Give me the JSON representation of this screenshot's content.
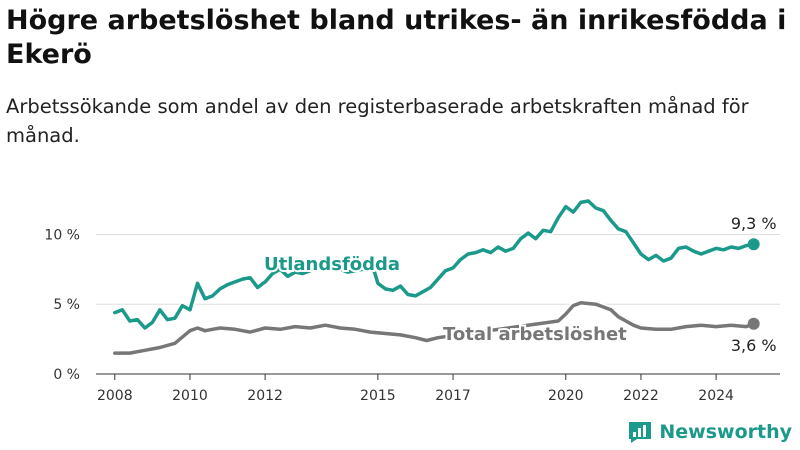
{
  "header": {
    "title": "Högre arbetslöshet bland utrikes- än inrikesfödda i Ekerö",
    "subtitle": "Arbetssökande som andel av den registerbaserade arbetskraften månad för månad."
  },
  "brand": {
    "name": "Newsworthy",
    "icon": "newsworthy-logo-icon",
    "color": "#1b998b"
  },
  "chart_data": {
    "type": "line",
    "title": "Högre arbetslöshet bland utrikes- än inrikesfödda i Ekerö",
    "subtitle": "Arbetssökande som andel av den registerbaserade arbetskraften månad för månad.",
    "xlabel": "",
    "ylabel": "",
    "xlim": [
      2007.5,
      2025.7
    ],
    "ylim": [
      0,
      12.9
    ],
    "x_ticks": [
      2008,
      2010,
      2012,
      2015,
      2017,
      2020,
      2022,
      2024
    ],
    "x_tick_labels": [
      "2008",
      "2010",
      "2012",
      "2015",
      "2017",
      "2020",
      "2022",
      "2024"
    ],
    "y_ticks": [
      0,
      5,
      10
    ],
    "y_tick_labels": [
      "0 %",
      "5 %",
      "10 %"
    ],
    "grid": "horizontal",
    "legend": "inline labels",
    "series": [
      {
        "name": "Utlandsfödda",
        "color": "#1b998b",
        "end_label": "9,3 %",
        "points": [
          [
            2008.0,
            4.4
          ],
          [
            2008.2,
            4.6
          ],
          [
            2008.4,
            3.8
          ],
          [
            2008.6,
            3.9
          ],
          [
            2008.8,
            3.3
          ],
          [
            2009.0,
            3.7
          ],
          [
            2009.2,
            4.6
          ],
          [
            2009.4,
            3.9
          ],
          [
            2009.6,
            4.0
          ],
          [
            2009.8,
            4.9
          ],
          [
            2010.0,
            4.6
          ],
          [
            2010.2,
            6.5
          ],
          [
            2010.4,
            5.4
          ],
          [
            2010.6,
            5.6
          ],
          [
            2010.8,
            6.1
          ],
          [
            2011.0,
            6.4
          ],
          [
            2011.2,
            6.6
          ],
          [
            2011.4,
            6.8
          ],
          [
            2011.6,
            6.9
          ],
          [
            2011.8,
            6.2
          ],
          [
            2012.0,
            6.6
          ],
          [
            2012.2,
            7.2
          ],
          [
            2012.4,
            7.5
          ],
          [
            2012.6,
            7.0
          ],
          [
            2012.8,
            7.3
          ],
          [
            2013.0,
            7.2
          ],
          [
            2013.4,
            7.6
          ],
          [
            2013.8,
            7.7
          ],
          [
            2014.2,
            7.3
          ],
          [
            2014.6,
            7.5
          ],
          [
            2014.9,
            7.4
          ],
          [
            2015.0,
            6.5
          ],
          [
            2015.2,
            6.1
          ],
          [
            2015.4,
            6.0
          ],
          [
            2015.6,
            6.3
          ],
          [
            2015.8,
            5.7
          ],
          [
            2016.0,
            5.6
          ],
          [
            2016.2,
            5.9
          ],
          [
            2016.4,
            6.2
          ],
          [
            2016.6,
            6.8
          ],
          [
            2016.8,
            7.4
          ],
          [
            2017.0,
            7.6
          ],
          [
            2017.2,
            8.2
          ],
          [
            2017.4,
            8.6
          ],
          [
            2017.6,
            8.7
          ],
          [
            2017.8,
            8.9
          ],
          [
            2018.0,
            8.7
          ],
          [
            2018.2,
            9.1
          ],
          [
            2018.4,
            8.8
          ],
          [
            2018.6,
            9.0
          ],
          [
            2018.8,
            9.7
          ],
          [
            2019.0,
            10.1
          ],
          [
            2019.2,
            9.7
          ],
          [
            2019.4,
            10.3
          ],
          [
            2019.6,
            10.2
          ],
          [
            2019.8,
            11.2
          ],
          [
            2020.0,
            12.0
          ],
          [
            2020.2,
            11.6
          ],
          [
            2020.4,
            12.3
          ],
          [
            2020.6,
            12.4
          ],
          [
            2020.8,
            11.9
          ],
          [
            2021.0,
            11.7
          ],
          [
            2021.2,
            11.0
          ],
          [
            2021.4,
            10.4
          ],
          [
            2021.6,
            10.2
          ],
          [
            2021.8,
            9.4
          ],
          [
            2022.0,
            8.6
          ],
          [
            2022.2,
            8.2
          ],
          [
            2022.4,
            8.5
          ],
          [
            2022.6,
            8.1
          ],
          [
            2022.8,
            8.3
          ],
          [
            2023.0,
            9.0
          ],
          [
            2023.2,
            9.1
          ],
          [
            2023.4,
            8.8
          ],
          [
            2023.6,
            8.6
          ],
          [
            2023.8,
            8.8
          ],
          [
            2024.0,
            9.0
          ],
          [
            2024.2,
            8.9
          ],
          [
            2024.4,
            9.1
          ],
          [
            2024.6,
            9.0
          ],
          [
            2024.8,
            9.2
          ],
          [
            2025.0,
            9.3
          ]
        ]
      },
      {
        "name": "Total arbetslöshet",
        "color": "#777777",
        "end_label": "3,6 %",
        "points": [
          [
            2008.0,
            1.5
          ],
          [
            2008.4,
            1.5
          ],
          [
            2008.8,
            1.7
          ],
          [
            2009.2,
            1.9
          ],
          [
            2009.6,
            2.2
          ],
          [
            2010.0,
            3.1
          ],
          [
            2010.2,
            3.3
          ],
          [
            2010.4,
            3.1
          ],
          [
            2010.8,
            3.3
          ],
          [
            2011.2,
            3.2
          ],
          [
            2011.6,
            3.0
          ],
          [
            2012.0,
            3.3
          ],
          [
            2012.4,
            3.2
          ],
          [
            2012.8,
            3.4
          ],
          [
            2013.2,
            3.3
          ],
          [
            2013.6,
            3.5
          ],
          [
            2014.0,
            3.3
          ],
          [
            2014.4,
            3.2
          ],
          [
            2014.8,
            3.0
          ],
          [
            2015.2,
            2.9
          ],
          [
            2015.6,
            2.8
          ],
          [
            2016.0,
            2.6
          ],
          [
            2016.3,
            2.4
          ],
          [
            2016.6,
            2.6
          ],
          [
            2019.8,
            3.8
          ],
          [
            2020.0,
            4.3
          ],
          [
            2020.2,
            4.9
          ],
          [
            2020.4,
            5.1
          ],
          [
            2020.8,
            5.0
          ],
          [
            2021.0,
            4.8
          ],
          [
            2021.2,
            4.6
          ],
          [
            2021.4,
            4.1
          ],
          [
            2021.6,
            3.8
          ],
          [
            2021.8,
            3.5
          ],
          [
            2022.0,
            3.3
          ],
          [
            2022.4,
            3.2
          ],
          [
            2022.8,
            3.2
          ],
          [
            2023.2,
            3.4
          ],
          [
            2023.6,
            3.5
          ],
          [
            2024.0,
            3.4
          ],
          [
            2024.4,
            3.5
          ],
          [
            2024.8,
            3.4
          ],
          [
            2025.0,
            3.6
          ]
        ]
      }
    ]
  }
}
